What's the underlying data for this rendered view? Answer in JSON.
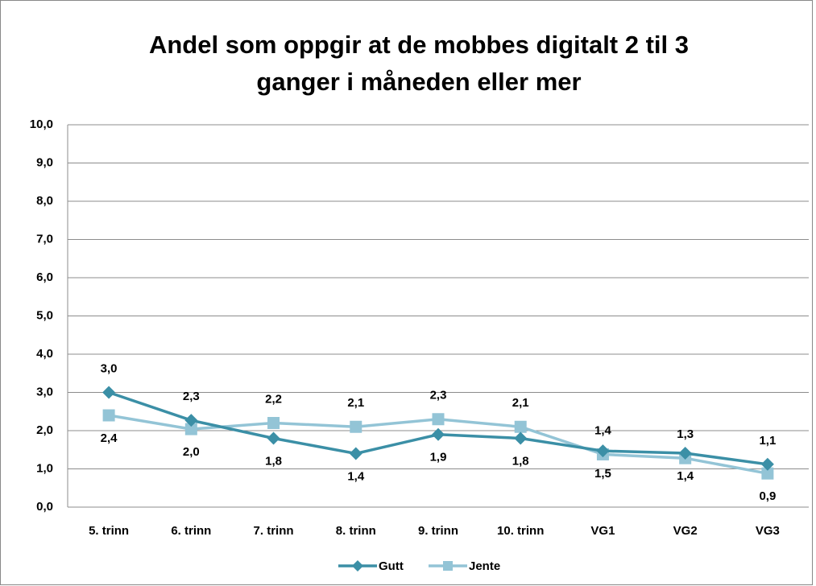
{
  "chart_data": {
    "type": "line",
    "title": [
      "Andel som oppgir at de mobbes digitalt  2 til 3",
      "ganger i måneden eller mer"
    ],
    "categories": [
      "5. trinn",
      "6. trinn",
      "7. trinn",
      "8. trinn",
      "9. trinn",
      "10. trinn",
      "VG1",
      "VG2",
      "VG3"
    ],
    "series": [
      {
        "name": "Gutt",
        "color": "#3b8fa6",
        "marker": "diamond",
        "values": [
          3.0,
          2.27,
          1.8,
          1.4,
          1.9,
          1.8,
          1.47,
          1.41,
          1.12
        ],
        "value_labels": [
          "3,0",
          "2,3",
          "1,8",
          "1,4",
          "1,9",
          "1,8",
          "1,5",
          "1,4",
          "1,1"
        ]
      },
      {
        "name": "Jente",
        "color": "#93c4d6",
        "marker": "square",
        "values": [
          2.4,
          2.04,
          2.2,
          2.1,
          2.3,
          2.1,
          1.38,
          1.28,
          0.88
        ],
        "value_labels": [
          "2,4",
          "2,0",
          "2,2",
          "2,1",
          "2,3",
          "2,1",
          "1,4",
          "1,3",
          "0,9"
        ]
      }
    ],
    "ylim": [
      0,
      10
    ],
    "yticks": [
      {
        "value": 0,
        "label": "0,0"
      },
      {
        "value": 1,
        "label": "1,0"
      },
      {
        "value": 2,
        "label": "2,0"
      },
      {
        "value": 3,
        "label": "3,0"
      },
      {
        "value": 4,
        "label": "4,0"
      },
      {
        "value": 5,
        "label": "5,0"
      },
      {
        "value": 6,
        "label": "6,0"
      },
      {
        "value": 7,
        "label": "7,0"
      },
      {
        "value": 8,
        "label": "8,0"
      },
      {
        "value": 9,
        "label": "9,0"
      },
      {
        "value": 10,
        "label": "10,0"
      }
    ],
    "grid": true,
    "legend": "bottom"
  }
}
